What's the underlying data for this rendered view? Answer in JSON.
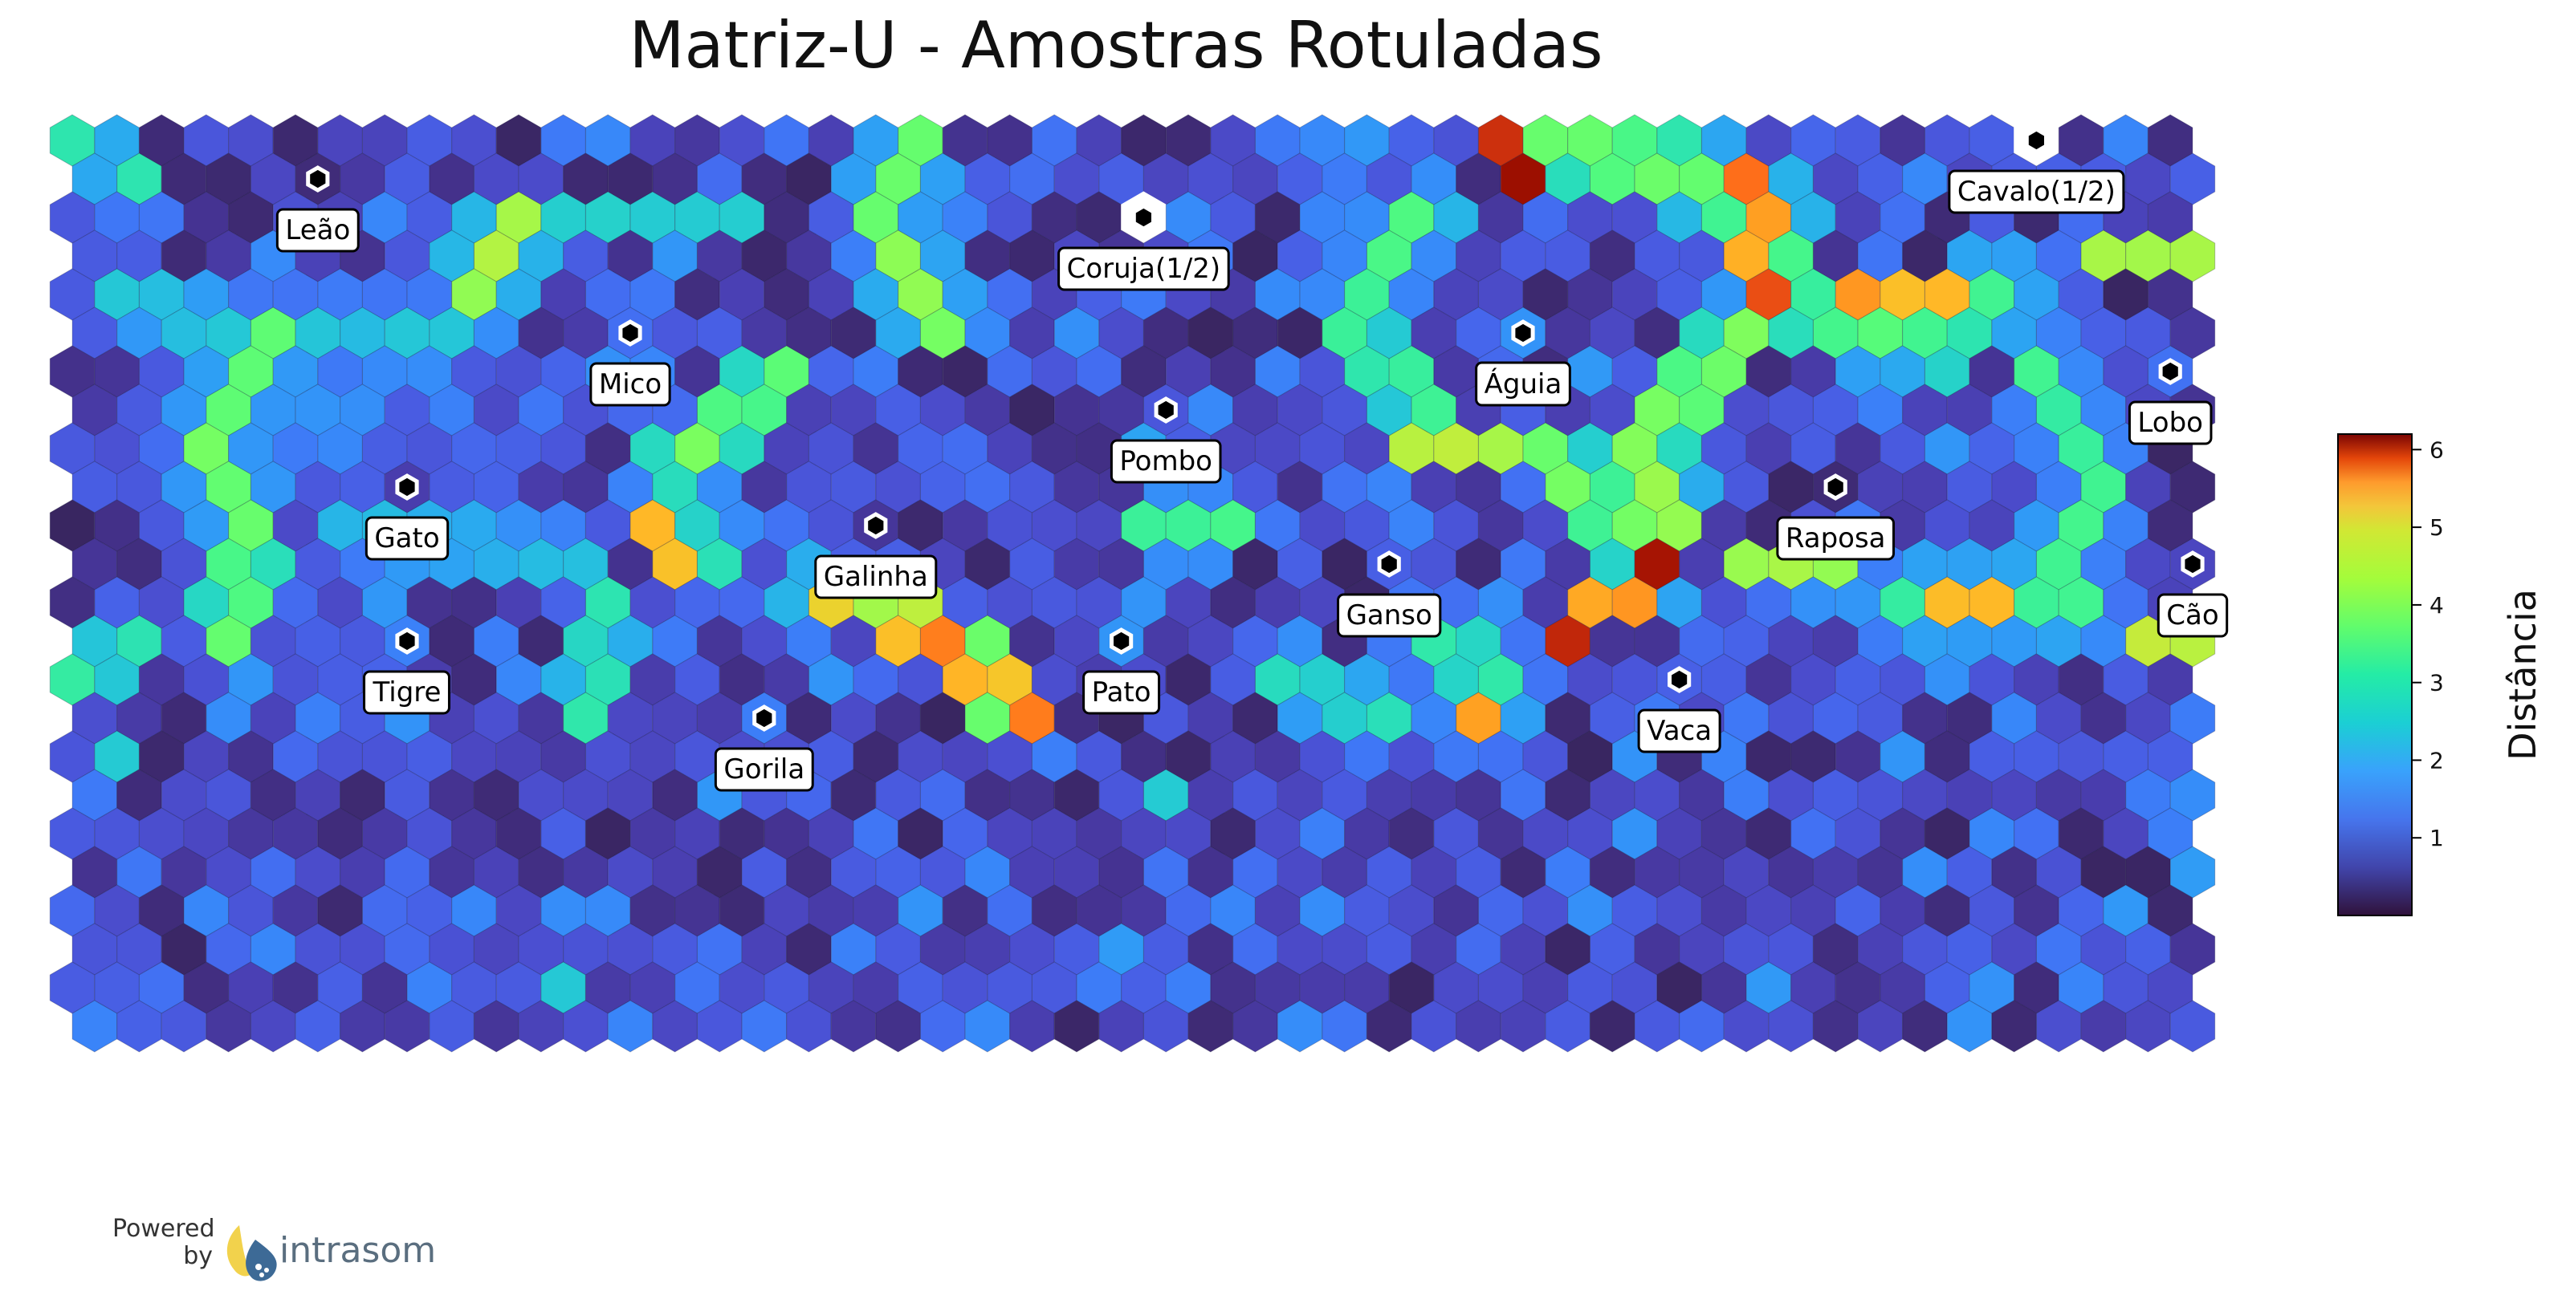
{
  "chart_data": {
    "type": "heatmap",
    "title": "Matriz-U - Amostras Rotuladas",
    "grid": {
      "columns": 48,
      "rows": 24,
      "cell_shape": "hexagon"
    },
    "colorbar": {
      "label": "Distância",
      "ticks": [
        "1",
        "2",
        "3",
        "4",
        "5",
        "6"
      ],
      "range": [
        0,
        6.2
      ],
      "colormap": "turbo"
    },
    "samples": [
      {
        "label": "Leão",
        "col": 5,
        "row": 1
      },
      {
        "label": "Mico",
        "col": 12,
        "row": 5
      },
      {
        "label": "Gato",
        "col": 7,
        "row": 9
      },
      {
        "label": "Tigre",
        "col": 7,
        "row": 13
      },
      {
        "label": "Gorila",
        "col": 15,
        "row": 15
      },
      {
        "label": "Galinha",
        "col": 18,
        "row": 10
      },
      {
        "label": "Pombo",
        "col": 24,
        "row": 7
      },
      {
        "label": "Coruja(1/2)",
        "col": 24,
        "row": 2
      },
      {
        "label": "Pato",
        "col": 23,
        "row": 13
      },
      {
        "label": "Ganso",
        "col": 29,
        "row": 11
      },
      {
        "label": "Águia",
        "col": 32,
        "row": 5
      },
      {
        "label": "Vaca",
        "col": 36,
        "row": 14
      },
      {
        "label": "Raposa",
        "col": 39,
        "row": 9
      },
      {
        "label": "Cavalo(1/2)",
        "col": 44,
        "row": 0
      },
      {
        "label": "Lobo",
        "col": 47,
        "row": 6
      },
      {
        "label": "Cão",
        "col": 47,
        "row": 11
      }
    ],
    "white_cells": [
      {
        "col": 24,
        "row": 2
      },
      {
        "col": 44,
        "row": 0
      }
    ],
    "features": [
      {
        "kind": "ridge",
        "points": [
          [
            10,
            2
          ],
          [
            9,
            4
          ]
        ],
        "value": 3.4,
        "width": 0.9
      },
      {
        "kind": "ridge",
        "points": [
          [
            19,
            0
          ],
          [
            18,
            2
          ]
        ],
        "value": 2.9,
        "width": 0.9
      },
      {
        "kind": "ridge",
        "points": [
          [
            18,
            3
          ],
          [
            19,
            5
          ]
        ],
        "value": 3.1,
        "width": 0.9
      },
      {
        "kind": "ridge",
        "points": [
          [
            4,
            5
          ],
          [
            3,
            8
          ],
          [
            4,
            10
          ],
          [
            3,
            13
          ]
        ],
        "value": 2.9,
        "width": 0.9
      },
      {
        "kind": "ridge",
        "points": [
          [
            16,
            6
          ],
          [
            14,
            8
          ]
        ],
        "value": 2.9,
        "width": 0.9
      },
      {
        "kind": "ridge",
        "points": [
          [
            13,
            8
          ],
          [
            14,
            11
          ]
        ],
        "value": 2.0,
        "width": 1.0
      },
      {
        "kind": "ridge",
        "points": [
          [
            13,
            10
          ],
          [
            13,
            11
          ]
        ],
        "value": 4.2,
        "width": 0.6
      },
      {
        "kind": "ridge",
        "points": [
          [
            12,
            12
          ],
          [
            11,
            15
          ]
        ],
        "value": 2.2,
        "width": 0.9
      },
      {
        "kind": "ridge",
        "points": [
          [
            17,
            12
          ],
          [
            19,
            12
          ]
        ],
        "value": 3.5,
        "width": 0.8
      },
      {
        "kind": "ridge",
        "points": [
          [
            17,
            12
          ],
          [
            18,
            13
          ]
        ],
        "value": 4.1,
        "width": 0.4
      },
      {
        "kind": "ridge",
        "points": [
          [
            19,
            13
          ],
          [
            21,
            15
          ]
        ],
        "value": 4.9,
        "width": 0.8
      },
      {
        "kind": "ridge",
        "points": [
          [
            24,
            10
          ],
          [
            26,
            10
          ]
        ],
        "value": 2.5,
        "width": 0.9
      },
      {
        "kind": "ridge",
        "points": [
          [
            30,
            2
          ],
          [
            28,
            5
          ],
          [
            30,
            7
          ]
        ],
        "value": 2.5,
        "width": 0.9
      },
      {
        "kind": "ridge",
        "points": [
          [
            30,
            8
          ],
          [
            32,
            8
          ]
        ],
        "value": 3.5,
        "width": 0.8
      },
      {
        "kind": "ridge",
        "points": [
          [
            33,
            0
          ],
          [
            36,
            1
          ],
          [
            38,
            2
          ]
        ],
        "value": 2.9,
        "width": 1.1
      },
      {
        "kind": "ridge",
        "points": [
          [
            32,
            0
          ],
          [
            32,
            1
          ]
        ],
        "value": 5.9,
        "width": 0.5
      },
      {
        "kind": "ridge",
        "points": [
          [
            37,
            1
          ],
          [
            38,
            4
          ]
        ],
        "value": 5.3,
        "width": 0.7
      },
      {
        "kind": "ridge",
        "points": [
          [
            38,
            4
          ],
          [
            40,
            5
          ],
          [
            43,
            4
          ]
        ],
        "value": 2.6,
        "width": 1.1
      },
      {
        "kind": "ridge",
        "points": [
          [
            40,
            4
          ],
          [
            42,
            4
          ]
        ],
        "value": 4.5,
        "width": 0.6
      },
      {
        "kind": "ridge",
        "points": [
          [
            45,
            3
          ],
          [
            47,
            3
          ]
        ],
        "value": 3.4,
        "width": 0.8
      },
      {
        "kind": "ridge",
        "points": [
          [
            37,
            5
          ],
          [
            35,
            8
          ],
          [
            36,
            10
          ]
        ],
        "value": 3.2,
        "width": 0.9
      },
      {
        "kind": "ridge",
        "points": [
          [
            33,
            8
          ],
          [
            35,
            11
          ],
          [
            35,
            12
          ]
        ],
        "value": 3.0,
        "width": 0.9
      },
      {
        "kind": "ridge",
        "points": [
          [
            35,
            11
          ],
          [
            33,
            13
          ]
        ],
        "value": 5.8,
        "width": 0.6
      },
      {
        "kind": "ridge",
        "points": [
          [
            37,
            11
          ],
          [
            39,
            11
          ]
        ],
        "value": 3.4,
        "width": 0.8
      },
      {
        "kind": "ridge",
        "points": [
          [
            44,
            6
          ],
          [
            45,
            9
          ],
          [
            44,
            11
          ]
        ],
        "value": 2.4,
        "width": 0.9
      },
      {
        "kind": "ridge",
        "points": [
          [
            41,
            12
          ],
          [
            45,
            12
          ]
        ],
        "value": 2.4,
        "width": 1.0
      },
      {
        "kind": "ridge",
        "points": [
          [
            42,
            12
          ],
          [
            43,
            12
          ]
        ],
        "value": 4.3,
        "width": 0.5
      },
      {
        "kind": "ridge",
        "points": [
          [
            46,
            13
          ],
          [
            47,
            13
          ]
        ],
        "value": 3.5,
        "width": 0.8
      },
      {
        "kind": "ridge",
        "points": [
          [
            30,
            13
          ],
          [
            32,
            14
          ],
          [
            31,
            15
          ]
        ],
        "value": 2.3,
        "width": 1.0
      },
      {
        "kind": "ridge",
        "points": [
          [
            31,
            15
          ],
          [
            31,
            15
          ]
        ],
        "value": 4.6,
        "width": 0.4
      },
      {
        "kind": "ridge",
        "points": [
          [
            27,
            14
          ],
          [
            29,
            15
          ]
        ],
        "value": 2.0,
        "width": 0.9
      },
      {
        "kind": "ridge",
        "points": [
          [
            1,
            13
          ],
          [
            0,
            14
          ]
        ],
        "value": 2.2,
        "width": 0.9
      },
      {
        "kind": "ridge",
        "points": [
          [
            0,
            0
          ],
          [
            1,
            1
          ]
        ],
        "value": 2.1,
        "width": 0.7
      },
      {
        "kind": "ridge",
        "points": [
          [
            1,
            4
          ],
          [
            3,
            5
          ],
          [
            8,
            5
          ]
        ],
        "value": 1.7,
        "width": 1.0
      },
      {
        "kind": "ridge",
        "points": [
          [
            11,
            2
          ],
          [
            15,
            2
          ]
        ],
        "value": 1.8,
        "width": 0.8
      },
      {
        "kind": "ridge",
        "points": [
          [
            6,
            10
          ],
          [
            11,
            11
          ]
        ],
        "value": 1.6,
        "width": 1.0
      },
      {
        "kind": "ridge",
        "points": [
          [
            41,
            5
          ],
          [
            42,
            6
          ]
        ],
        "value": 2.0,
        "width": 0.8
      }
    ]
  },
  "branding": {
    "powered_by": [
      "Powered",
      "by"
    ],
    "name": "intrasom"
  }
}
